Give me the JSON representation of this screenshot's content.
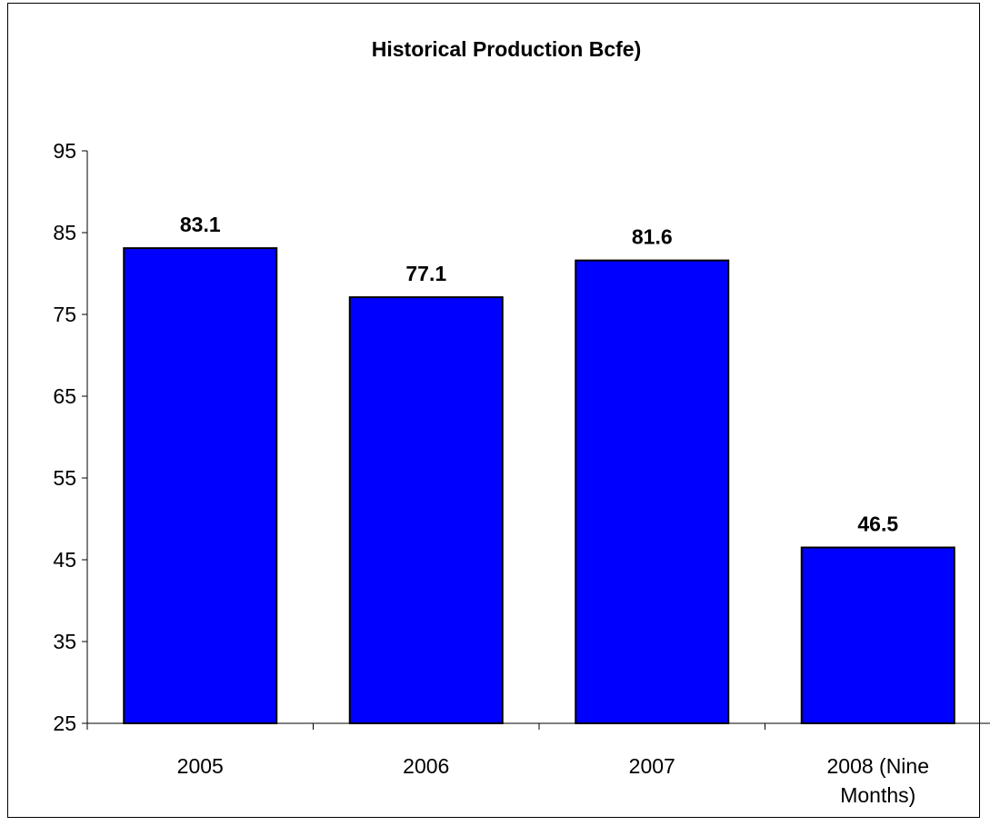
{
  "chart_data": {
    "type": "bar",
    "title": "Historical Production Bcfe)",
    "xlabel": "",
    "ylabel": "",
    "categories": [
      [
        "2005"
      ],
      [
        "2006"
      ],
      [
        "2007"
      ],
      [
        "2008 (Nine",
        "Months)"
      ]
    ],
    "values": [
      83.1,
      77.1,
      81.6,
      46.5
    ],
    "data_labels": [
      "83.1",
      "77.1",
      "81.6",
      "46.5"
    ],
    "ylim": [
      25,
      95
    ],
    "yticks": [
      25,
      35,
      45,
      55,
      65,
      75,
      85,
      95
    ],
    "grid": false,
    "legend": "none",
    "colors": {
      "bar_fill": "#0000ff",
      "bar_stroke": "#000000",
      "axis": "#000000",
      "text": "#000000"
    }
  }
}
